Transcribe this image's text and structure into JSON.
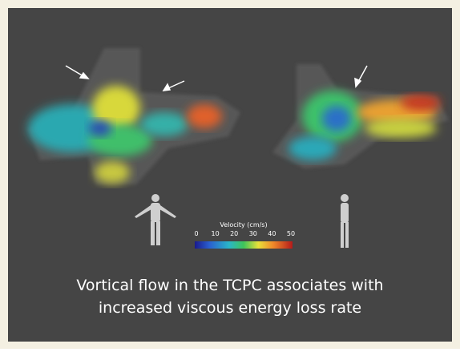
{
  "colorbar": {
    "title": "Velocity (cm/s)",
    "ticks": [
      0,
      10,
      20,
      30,
      40,
      50
    ]
  },
  "caption": {
    "lines": [
      "Vortical flow in the TCPC associates with",
      "increased viscous energy loss rate"
    ]
  }
}
